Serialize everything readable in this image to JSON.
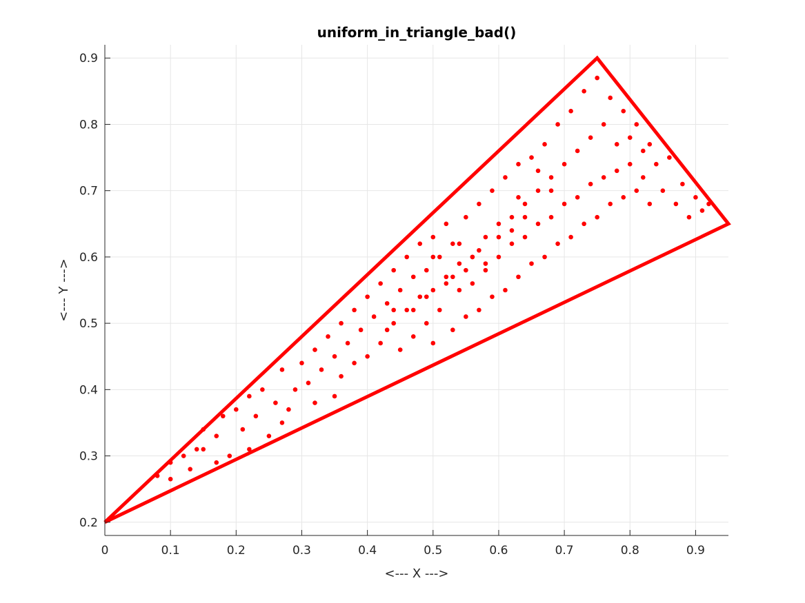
{
  "chart_data": {
    "type": "scatter",
    "title": "uniform_in_triangle_bad()",
    "xlabel": "<--- X --->",
    "ylabel": "<--- Y --->",
    "xlim": [
      0,
      0.95
    ],
    "ylim": [
      0.18,
      0.92
    ],
    "xticks": [
      0,
      0.1,
      0.2,
      0.3,
      0.4,
      0.5,
      0.6,
      0.7,
      0.8,
      0.9
    ],
    "xtick_labels": [
      "0",
      "0.1",
      "0.2",
      "0.3",
      "0.4",
      "0.5",
      "0.6",
      "0.7",
      "0.8",
      "0.9"
    ],
    "yticks": [
      0.2,
      0.3,
      0.4,
      0.5,
      0.6,
      0.7,
      0.8,
      0.9
    ],
    "ytick_labels": [
      "0.2",
      "0.3",
      "0.4",
      "0.5",
      "0.6",
      "0.7",
      "0.8",
      "0.9"
    ],
    "grid": true,
    "color": "#ff0000",
    "triangle": [
      [
        0,
        0.2
      ],
      [
        0.75,
        0.9
      ],
      [
        0.95,
        0.65
      ]
    ],
    "points": [
      [
        0.08,
        0.27
      ],
      [
        0.1,
        0.29
      ],
      [
        0.1,
        0.265
      ],
      [
        0.12,
        0.3
      ],
      [
        0.13,
        0.28
      ],
      [
        0.14,
        0.31
      ],
      [
        0.15,
        0.34
      ],
      [
        0.15,
        0.31
      ],
      [
        0.17,
        0.33
      ],
      [
        0.17,
        0.29
      ],
      [
        0.18,
        0.36
      ],
      [
        0.19,
        0.3
      ],
      [
        0.2,
        0.37
      ],
      [
        0.21,
        0.34
      ],
      [
        0.22,
        0.39
      ],
      [
        0.22,
        0.31
      ],
      [
        0.23,
        0.36
      ],
      [
        0.24,
        0.4
      ],
      [
        0.25,
        0.33
      ],
      [
        0.26,
        0.38
      ],
      [
        0.27,
        0.35
      ],
      [
        0.27,
        0.43
      ],
      [
        0.28,
        0.37
      ],
      [
        0.29,
        0.4
      ],
      [
        0.3,
        0.44
      ],
      [
        0.31,
        0.41
      ],
      [
        0.32,
        0.46
      ],
      [
        0.32,
        0.38
      ],
      [
        0.33,
        0.43
      ],
      [
        0.34,
        0.48
      ],
      [
        0.35,
        0.39
      ],
      [
        0.35,
        0.45
      ],
      [
        0.36,
        0.5
      ],
      [
        0.36,
        0.42
      ],
      [
        0.37,
        0.47
      ],
      [
        0.38,
        0.52
      ],
      [
        0.38,
        0.44
      ],
      [
        0.39,
        0.49
      ],
      [
        0.4,
        0.54
      ],
      [
        0.4,
        0.45
      ],
      [
        0.41,
        0.51
      ],
      [
        0.42,
        0.56
      ],
      [
        0.42,
        0.47
      ],
      [
        0.43,
        0.53
      ],
      [
        0.43,
        0.49
      ],
      [
        0.44,
        0.58
      ],
      [
        0.44,
        0.5
      ],
      [
        0.45,
        0.55
      ],
      [
        0.45,
        0.46
      ],
      [
        0.46,
        0.6
      ],
      [
        0.46,
        0.52
      ],
      [
        0.47,
        0.57
      ],
      [
        0.47,
        0.48
      ],
      [
        0.48,
        0.54
      ],
      [
        0.48,
        0.62
      ],
      [
        0.49,
        0.5
      ],
      [
        0.49,
        0.58
      ],
      [
        0.5,
        0.55
      ],
      [
        0.5,
        0.63
      ],
      [
        0.5,
        0.47
      ],
      [
        0.51,
        0.6
      ],
      [
        0.51,
        0.52
      ],
      [
        0.52,
        0.57
      ],
      [
        0.52,
        0.65
      ],
      [
        0.53,
        0.49
      ],
      [
        0.53,
        0.62
      ],
      [
        0.54,
        0.55
      ],
      [
        0.54,
        0.59
      ],
      [
        0.55,
        0.66
      ],
      [
        0.55,
        0.51
      ],
      [
        0.56,
        0.6
      ],
      [
        0.56,
        0.56
      ],
      [
        0.57,
        0.68
      ],
      [
        0.57,
        0.52
      ],
      [
        0.58,
        0.63
      ],
      [
        0.58,
        0.58
      ],
      [
        0.59,
        0.7
      ],
      [
        0.59,
        0.54
      ],
      [
        0.6,
        0.65
      ],
      [
        0.6,
        0.6
      ],
      [
        0.61,
        0.72
      ],
      [
        0.61,
        0.55
      ],
      [
        0.62,
        0.66
      ],
      [
        0.62,
        0.62
      ],
      [
        0.63,
        0.74
      ],
      [
        0.63,
        0.57
      ],
      [
        0.64,
        0.68
      ],
      [
        0.64,
        0.63
      ],
      [
        0.65,
        0.75
      ],
      [
        0.65,
        0.59
      ],
      [
        0.66,
        0.7
      ],
      [
        0.66,
        0.65
      ],
      [
        0.67,
        0.77
      ],
      [
        0.67,
        0.6
      ],
      [
        0.68,
        0.72
      ],
      [
        0.68,
        0.66
      ],
      [
        0.69,
        0.8
      ],
      [
        0.69,
        0.62
      ],
      [
        0.7,
        0.74
      ],
      [
        0.7,
        0.68
      ],
      [
        0.71,
        0.82
      ],
      [
        0.71,
        0.63
      ],
      [
        0.72,
        0.76
      ],
      [
        0.72,
        0.69
      ],
      [
        0.73,
        0.85
      ],
      [
        0.73,
        0.65
      ],
      [
        0.74,
        0.78
      ],
      [
        0.74,
        0.71
      ],
      [
        0.75,
        0.87
      ],
      [
        0.75,
        0.66
      ],
      [
        0.76,
        0.8
      ],
      [
        0.76,
        0.72
      ],
      [
        0.77,
        0.84
      ],
      [
        0.77,
        0.68
      ],
      [
        0.78,
        0.77
      ],
      [
        0.78,
        0.73
      ],
      [
        0.79,
        0.82
      ],
      [
        0.79,
        0.69
      ],
      [
        0.8,
        0.78
      ],
      [
        0.8,
        0.74
      ],
      [
        0.81,
        0.8
      ],
      [
        0.81,
        0.7
      ],
      [
        0.82,
        0.76
      ],
      [
        0.82,
        0.72
      ],
      [
        0.83,
        0.77
      ],
      [
        0.83,
        0.68
      ],
      [
        0.84,
        0.74
      ],
      [
        0.85,
        0.7
      ],
      [
        0.86,
        0.75
      ],
      [
        0.87,
        0.68
      ],
      [
        0.88,
        0.71
      ],
      [
        0.89,
        0.66
      ],
      [
        0.9,
        0.69
      ],
      [
        0.91,
        0.67
      ],
      [
        0.92,
        0.68
      ],
      [
        0.56,
        0.6
      ],
      [
        0.55,
        0.58
      ],
      [
        0.53,
        0.57
      ],
      [
        0.57,
        0.61
      ],
      [
        0.6,
        0.63
      ],
      [
        0.52,
        0.56
      ],
      [
        0.54,
        0.62
      ],
      [
        0.58,
        0.59
      ],
      [
        0.49,
        0.54
      ],
      [
        0.62,
        0.64
      ],
      [
        0.64,
        0.66
      ],
      [
        0.47,
        0.52
      ],
      [
        0.44,
        0.52
      ],
      [
        0.5,
        0.6
      ],
      [
        0.63,
        0.69
      ],
      [
        0.66,
        0.73
      ],
      [
        0.68,
        0.7
      ]
    ]
  }
}
